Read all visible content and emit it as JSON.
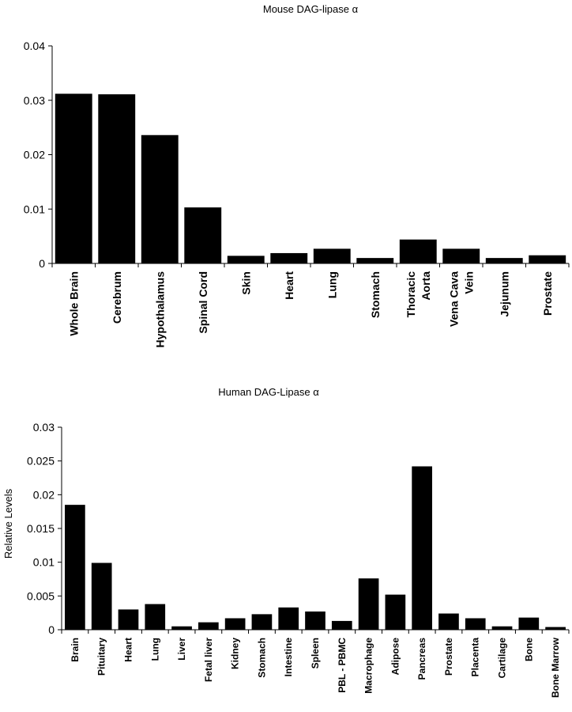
{
  "chart_data": [
    {
      "type": "bar",
      "title": "Mouse DAG-lipase α",
      "xlabel": "",
      "ylabel": "",
      "ylim": [
        0,
        0.04
      ],
      "yticks": [
        "0",
        "0.01",
        "0.02",
        "0.03",
        "0.04"
      ],
      "grid": false,
      "legend": "none",
      "bar_color": "#000000",
      "categories": [
        "Whole Brain",
        "Cerebrum",
        "Hypothalamus",
        "Spinal Cord",
        "Skin",
        "Heart",
        "Lung",
        "Stomach",
        "Thoracic Aorta",
        "Vena Cava Vein",
        "Jejunum",
        "Prostate"
      ],
      "category_lines": [
        [
          "Whole Brain"
        ],
        [
          "Cerebrum"
        ],
        [
          "Hypothalamus"
        ],
        [
          "Spinal Cord"
        ],
        [
          "Skin"
        ],
        [
          "Heart"
        ],
        [
          "Lung"
        ],
        [
          "Stomach"
        ],
        [
          "Thoracic",
          "Aorta"
        ],
        [
          "Vena Cava",
          "Vein"
        ],
        [
          "Jejunum"
        ],
        [
          "Prostate"
        ]
      ],
      "values": [
        0.0312,
        0.0311,
        0.0236,
        0.0103,
        0.0014,
        0.0019,
        0.0027,
        0.001,
        0.0044,
        0.0027,
        0.001,
        0.0015
      ]
    },
    {
      "type": "bar",
      "title": "Human DAG-Lipase α",
      "xlabel": "",
      "ylabel": "Relative Levels",
      "ylim": [
        0,
        0.03
      ],
      "yticks": [
        "0",
        "0.005",
        "0.01",
        "0.015",
        "0.02",
        "0.025",
        "0.03"
      ],
      "grid": false,
      "legend": "none",
      "bar_color": "#000000",
      "categories": [
        "Brain",
        "Pituitary",
        "Heart",
        "Lung",
        "Liver",
        "Fetal liver",
        "Kidney",
        "Stomach",
        "Intestine",
        "Spleen",
        "PBL - PBMC",
        "Macrophage",
        "Adipose",
        "Pancreas",
        "Prostate",
        "Placenta",
        "Cartilage",
        "Bone",
        "Bone Marrow"
      ],
      "values": [
        0.0185,
        0.0099,
        0.003,
        0.0038,
        0.0005,
        0.0011,
        0.0017,
        0.0023,
        0.0033,
        0.0027,
        0.0013,
        0.0076,
        0.0052,
        0.0242,
        0.0024,
        0.0017,
        0.0005,
        0.0018,
        0.0004
      ]
    }
  ]
}
